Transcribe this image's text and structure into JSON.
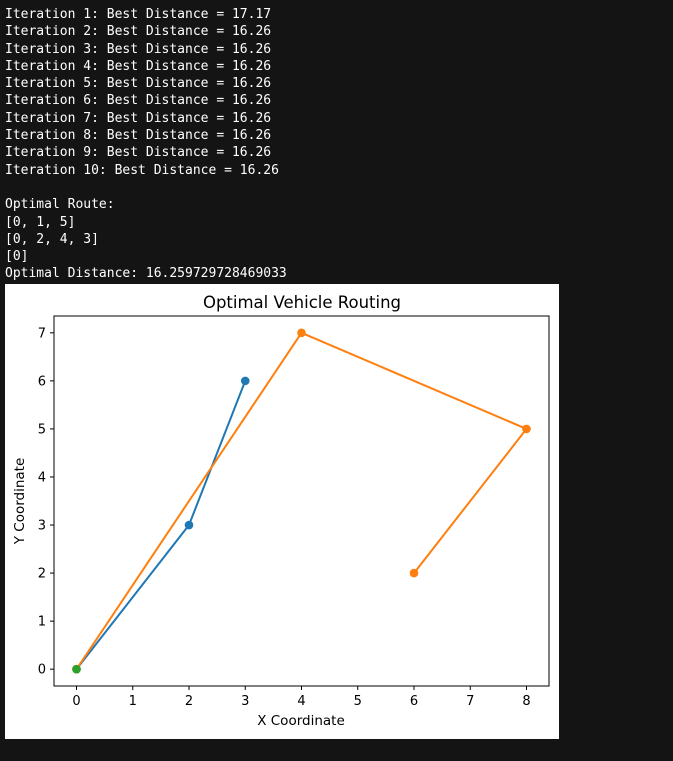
{
  "console": {
    "lines": [
      "Iteration 1: Best Distance = 17.17",
      "Iteration 2: Best Distance = 16.26",
      "Iteration 3: Best Distance = 16.26",
      "Iteration 4: Best Distance = 16.26",
      "Iteration 5: Best Distance = 16.26",
      "Iteration 6: Best Distance = 16.26",
      "Iteration 7: Best Distance = 16.26",
      "Iteration 8: Best Distance = 16.26",
      "Iteration 9: Best Distance = 16.26",
      "Iteration 10: Best Distance = 16.26",
      "",
      "Optimal Route:",
      "[0, 1, 5]",
      "[0, 2, 4, 3]",
      "[0]",
      "Optimal Distance: 16.259729728469033"
    ]
  },
  "chart_data": {
    "type": "line",
    "title": "Optimal Vehicle Routing",
    "xlabel": "X Coordinate",
    "ylabel": "Y Coordinate",
    "xlim": [
      -0.4,
      8.4
    ],
    "ylim": [
      -0.35,
      7.35
    ],
    "xticks": [
      0,
      1,
      2,
      3,
      4,
      5,
      6,
      7,
      8
    ],
    "yticks": [
      0,
      1,
      2,
      3,
      4,
      5,
      6,
      7
    ],
    "grid": false,
    "series": [
      {
        "color": "#1f77b4",
        "x": [
          0,
          2,
          3
        ],
        "y": [
          0,
          3,
          6
        ]
      },
      {
        "color": "#ff7f0e",
        "x": [
          0,
          4,
          8,
          6
        ],
        "y": [
          0,
          7,
          5,
          2
        ]
      },
      {
        "color": "#2ca02c",
        "x": [
          0
        ],
        "y": [
          0
        ]
      }
    ]
  }
}
